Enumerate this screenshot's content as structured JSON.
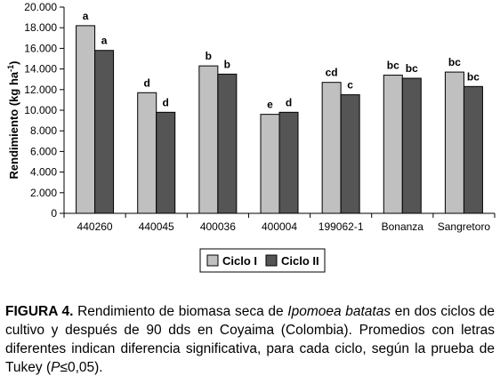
{
  "chart_data": {
    "type": "bar",
    "ylabel_main": "Rendimiento (kg ha",
    "ylabel_sup": "-1",
    "ylabel_end": ")",
    "ylim": [
      0,
      20000
    ],
    "yticks": [
      0,
      2000,
      4000,
      6000,
      8000,
      10000,
      12000,
      14000,
      16000,
      18000,
      20000
    ],
    "ytick_labels": [
      "0",
      "2.000",
      "4.000",
      "6.000",
      "8.000",
      "10.000",
      "12.000",
      "14.000",
      "16.000",
      "18.000",
      "20.000"
    ],
    "categories": [
      "440260",
      "440045",
      "400036",
      "400004",
      "199062-1",
      "Bonanza",
      "Sangretoro"
    ],
    "series": [
      {
        "name": "Ciclo I",
        "color": "#c0c0c0",
        "values": [
          18200,
          11700,
          14300,
          9600,
          12700,
          13400,
          13700
        ],
        "labels": [
          "a",
          "d",
          "b",
          "e",
          "cd",
          "bc",
          "bc"
        ]
      },
      {
        "name": "Ciclo II",
        "color": "#555555",
        "values": [
          15800,
          9800,
          13500,
          9800,
          11500,
          13100,
          12300
        ],
        "labels": [
          "a",
          "d",
          "b",
          "d",
          "c",
          "bc",
          "bc"
        ]
      }
    ],
    "legend_position": "bottom-center",
    "grid": false
  },
  "caption": {
    "label": "FIGURA 4.",
    "text_1": " Rendimiento de biomasa seca de ",
    "species": "Ipomoea batatas",
    "text_2": " en dos ciclos de cultivo y después de 90 dds en Coyaima (Colombia). Promedios con letras diferentes indican diferencia significativa, para cada ciclo, según la prueba de Tukey (",
    "p_symbol": "P",
    "p_rel": "≤",
    "p_value": "0,05",
    "text_end": ")."
  }
}
